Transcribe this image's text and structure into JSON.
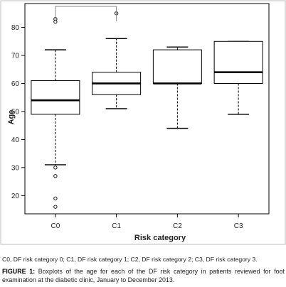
{
  "chart_data": {
    "type": "boxplot",
    "title": "",
    "xlabel": "Risk category",
    "ylabel": "Age",
    "ylim": [
      13.5,
      88.5
    ],
    "yticks": [
      20,
      30,
      40,
      50,
      60,
      70,
      80
    ],
    "grid": false,
    "categories": [
      "C0",
      "C1",
      "C2",
      "C3"
    ],
    "boxes": [
      {
        "category": "C0",
        "whisker_low": 31,
        "q1": 49,
        "median": 54,
        "q3": 61,
        "whisker_high": 72,
        "outliers": [
          16,
          19,
          27,
          30,
          82,
          83
        ]
      },
      {
        "category": "C1",
        "whisker_low": 51,
        "q1": 56,
        "median": 60,
        "q3": 64,
        "whisker_high": 76,
        "outliers": [
          85
        ]
      },
      {
        "category": "C2",
        "whisker_low": 44,
        "q1": 60,
        "median": 60,
        "q3": 72,
        "whisker_high": 73,
        "outliers": []
      },
      {
        "category": "C3",
        "whisker_low": 49,
        "q1": 60,
        "median": 64,
        "q3": 75,
        "whisker_high": 75,
        "outliers": []
      }
    ],
    "annotation": {
      "type": "bracket",
      "from": "C0",
      "to": "C1"
    }
  },
  "footnote": "C0, DF risk category 0; C1, DF risk category 1; C2, DF risk category 2; C3, DF risk category 3.",
  "caption": {
    "label": "FIGURE 1:",
    "text": " Boxplots of the age for each of the DF risk category in patients reviewed for foot examination at the diabetic clinic, January to December 2013."
  }
}
